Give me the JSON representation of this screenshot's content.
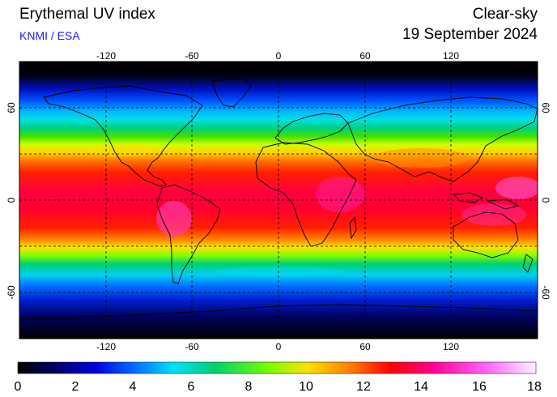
{
  "header": {
    "title": "Erythemal UV index",
    "organization": "KNMI / ESA",
    "condition": "Clear-sky",
    "date": "19 September 2024"
  },
  "map": {
    "projection": "equirectangular",
    "lon_range": [
      -180,
      180
    ],
    "lat_range": [
      -90,
      90
    ],
    "lon_ticks": [
      "-120",
      "-60",
      "0",
      "60",
      "120"
    ],
    "lat_ticks": [
      "60",
      "0",
      "-60"
    ],
    "gridlines": "dashed",
    "background": "black"
  },
  "colorbar": {
    "ticks": [
      "0",
      "2",
      "4",
      "6",
      "8",
      "10",
      "12",
      "14",
      "16",
      "18"
    ],
    "range": [
      0,
      18
    ],
    "colors": [
      "#000000",
      "#0000c8",
      "#0064ff",
      "#00e0ff",
      "#00d070",
      "#70ff00",
      "#ffe000",
      "#ff6000",
      "#ff0000",
      "#ff0090",
      "#ff60ff",
      "#ffe8ff"
    ]
  }
}
